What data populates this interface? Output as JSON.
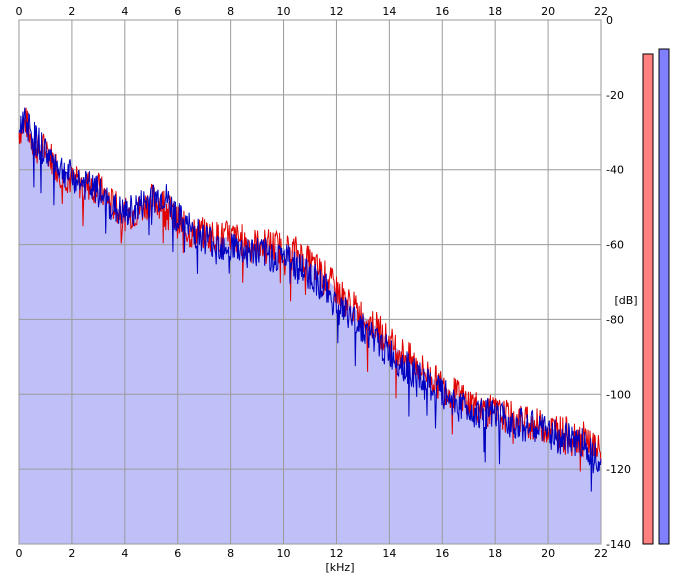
{
  "chart_data": {
    "type": "area",
    "xlabel": "[kHz]",
    "ylabel": "[dB]",
    "xlim": [
      0,
      22
    ],
    "ylim": [
      -140,
      0
    ],
    "x_ticks": [
      "0",
      "2",
      "4",
      "6",
      "8",
      "10",
      "12",
      "14",
      "16",
      "18",
      "20",
      "22"
    ],
    "y_ticks": [
      "0",
      "-20",
      "-40",
      "-60",
      "-80",
      "-100",
      "-120",
      "-140"
    ],
    "grid": true,
    "fill_color": "#c0c0f8",
    "series": [
      {
        "color": "#e00000",
        "x": [
          0,
          0.25,
          0.5,
          0.75,
          1,
          1.5,
          2,
          2.5,
          3,
          3.5,
          4,
          4.5,
          5,
          5.5,
          6,
          6.5,
          7,
          7.5,
          8,
          8.5,
          9,
          9.5,
          10,
          10.5,
          11,
          11.5,
          12,
          12.5,
          13,
          13.5,
          14,
          14.5,
          15,
          15.5,
          16,
          16.5,
          17,
          17.5,
          18,
          18.5,
          19,
          19.5,
          20,
          20.5,
          21,
          21.5,
          22
        ],
        "values": [
          -30,
          -27,
          -32,
          -35,
          -34,
          -40,
          -43,
          -44,
          -45,
          -49,
          -52,
          -51,
          -48,
          -49,
          -54,
          -57,
          -57,
          -58,
          -58,
          -59,
          -60,
          -60,
          -61,
          -62,
          -65,
          -68,
          -72,
          -76,
          -79,
          -82,
          -86,
          -89,
          -92,
          -95,
          -98,
          -100,
          -102,
          -104,
          -105,
          -106,
          -107,
          -108,
          -109,
          -110,
          -111,
          -112,
          -116
        ]
      },
      {
        "color": "#0000c0",
        "x": [
          0,
          0.25,
          0.5,
          0.75,
          1,
          1.5,
          2,
          2.5,
          3,
          3.5,
          4,
          4.5,
          5,
          5.5,
          6,
          6.5,
          7,
          7.5,
          8,
          8.5,
          9,
          9.5,
          10,
          10.5,
          11,
          11.5,
          12,
          12.5,
          13,
          13.5,
          14,
          14.5,
          15,
          15.5,
          16,
          16.5,
          17,
          17.5,
          18,
          18.5,
          19,
          19.5,
          20,
          20.5,
          21,
          21.5,
          22
        ],
        "values": [
          -30,
          -25,
          -31,
          -33,
          -35,
          -39,
          -42,
          -44,
          -46,
          -50,
          -52,
          -50,
          -48,
          -47,
          -53,
          -56,
          -58,
          -60,
          -60,
          -62,
          -62,
          -63,
          -63,
          -66,
          -68,
          -71,
          -76,
          -79,
          -82,
          -86,
          -89,
          -92,
          -95,
          -98,
          -100,
          -102,
          -104,
          -105,
          -106,
          -107,
          -108,
          -109,
          -110,
          -112,
          -112,
          -114,
          -117
        ]
      }
    ]
  }
}
